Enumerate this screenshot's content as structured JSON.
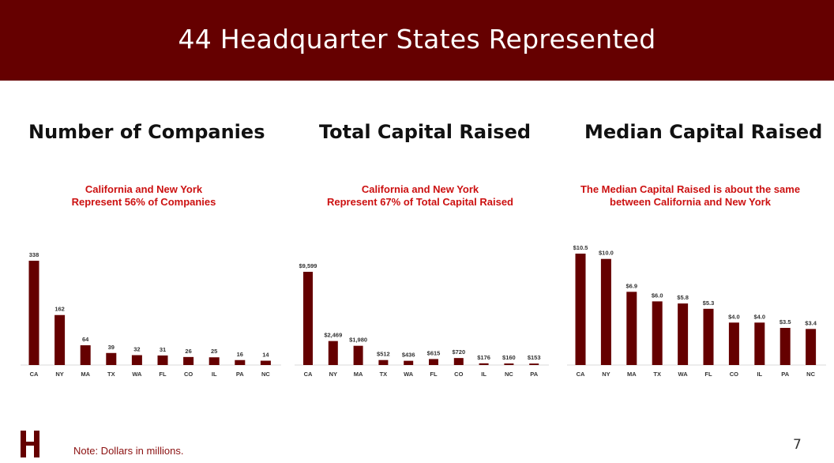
{
  "header": {
    "title": "44 Headquarter States Represented"
  },
  "panels": [
    {
      "title": "Number of Companies",
      "subtitle_lines": [
        "California and New York",
        "Represent 56% of Companies"
      ]
    },
    {
      "title": "Total Capital Raised",
      "subtitle_lines": [
        "California and New York",
        "Represent 67% of Total Capital Raised"
      ]
    },
    {
      "title": "Median Capital Raised",
      "subtitle_lines": [
        "The Median Capital Raised is about the same",
        "between California and New York"
      ]
    }
  ],
  "chart_data": [
    {
      "type": "bar",
      "categories": [
        "CA",
        "NY",
        "MA",
        "TX",
        "WA",
        "FL",
        "CO",
        "IL",
        "PA",
        "NC"
      ],
      "values": [
        338,
        162,
        64,
        39,
        32,
        31,
        26,
        25,
        16,
        14
      ],
      "labels": [
        "338",
        "162",
        "64",
        "39",
        "32",
        "31",
        "26",
        "25",
        "16",
        "14"
      ],
      "bar_color": "#650000"
    },
    {
      "type": "bar",
      "categories": [
        "CA",
        "NY",
        "MA",
        "TX",
        "WA",
        "FL",
        "CO",
        "IL",
        "NC",
        "PA"
      ],
      "values": [
        9599,
        2469,
        1980,
        512,
        436,
        615,
        720,
        176,
        160,
        153
      ],
      "labels": [
        "$9,599",
        "$2,469",
        "$1,980",
        "$512",
        "$436",
        "$615",
        "$720",
        "$176",
        "$160",
        "$153"
      ],
      "bar_color": "#650000"
    },
    {
      "type": "bar",
      "categories": [
        "CA",
        "NY",
        "MA",
        "TX",
        "WA",
        "FL",
        "CO",
        "IL",
        "PA",
        "NC"
      ],
      "values": [
        10.5,
        10.0,
        6.9,
        6.0,
        5.8,
        5.3,
        4.0,
        4.0,
        3.5,
        3.4
      ],
      "labels": [
        "$10.5",
        "$10.0",
        "$6.9",
        "$6.0",
        "$5.8",
        "$5.3",
        "$4.0",
        "$4.0",
        "$3.5",
        "$3.4"
      ],
      "bar_color": "#650000"
    }
  ],
  "footer": {
    "note": "Note: Dollars in millions.",
    "page_number": "7"
  }
}
